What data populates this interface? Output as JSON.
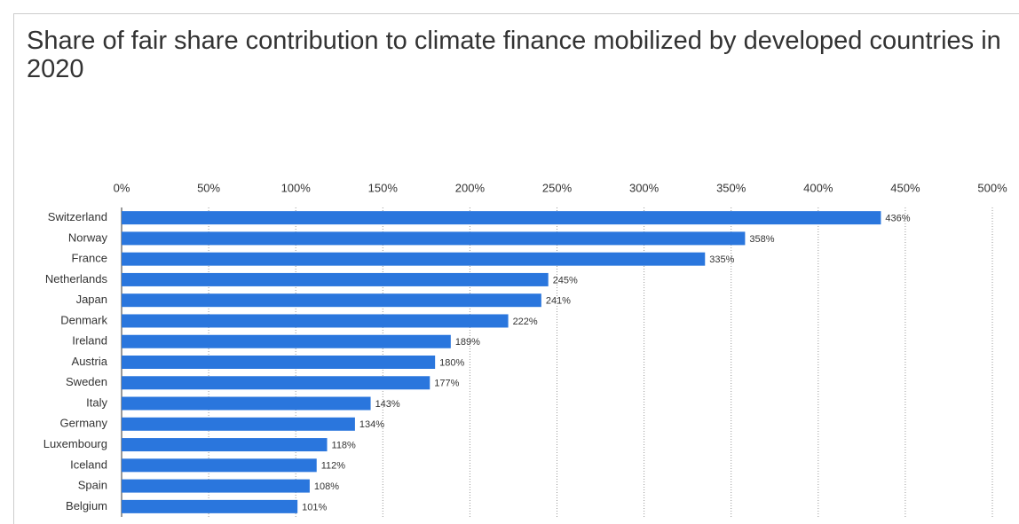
{
  "chart_data": {
    "type": "bar",
    "orientation": "horizontal",
    "title": "Share of fair share contribution to climate finance mobilized by developed countries in 2020",
    "categories": [
      "Switzerland",
      "Norway",
      "France",
      "Netherlands",
      "Japan",
      "Denmark",
      "Ireland",
      "Austria",
      "Sweden",
      "Italy",
      "Germany",
      "Luxembourg",
      "Iceland",
      "Spain",
      "Belgium"
    ],
    "values": [
      436,
      358,
      335,
      245,
      241,
      222,
      189,
      180,
      177,
      143,
      134,
      118,
      112,
      108,
      101
    ],
    "value_labels": [
      "436%",
      "358%",
      "335%",
      "245%",
      "241%",
      "222%",
      "189%",
      "180%",
      "177%",
      "143%",
      "134%",
      "118%",
      "112%",
      "108%",
      "101%"
    ],
    "color": "#2a76dd",
    "xlim": [
      0,
      500
    ],
    "xticks": [
      {
        "value": 0,
        "label": "0%"
      },
      {
        "value": 50,
        "label": "50%"
      },
      {
        "value": 100,
        "label": "100%"
      },
      {
        "value": 150,
        "label": "150%"
      },
      {
        "value": 200,
        "label": "200%"
      },
      {
        "value": 250,
        "label": "250%"
      },
      {
        "value": 300,
        "label": "300%"
      },
      {
        "value": 350,
        "label": "350%"
      },
      {
        "value": 400,
        "label": "400%"
      },
      {
        "value": 450,
        "label": "450%"
      },
      {
        "value": 500,
        "label": "500%"
      }
    ],
    "grid": true
  }
}
